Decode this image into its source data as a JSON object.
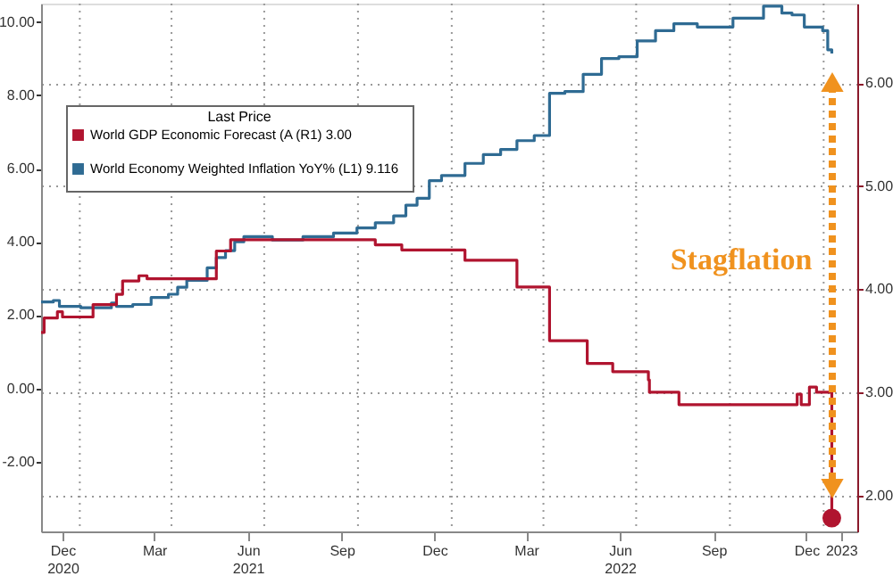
{
  "chart_data": {
    "type": "step",
    "legend_title": "Last Price",
    "legend": "top left",
    "grid": true,
    "marker": "none",
    "line_style": "solid",
    "annotations": [
      "Stagflation"
    ],
    "xlim": [
      "2020-11-24",
      "2023-02-03"
    ],
    "xticks": [
      {
        "value": "2020-12-15",
        "label": "Dec\n2020"
      },
      {
        "value": "2021-01-01",
        "label": null
      },
      {
        "value": "2021-03-15",
        "label": "Mar"
      },
      {
        "value": "2021-04-01",
        "label": null
      },
      {
        "value": "2021-06-15",
        "label": "Jun\n2021"
      },
      {
        "value": "2021-07-01",
        "label": null
      },
      {
        "value": "2021-09-15",
        "label": "Sep"
      },
      {
        "value": "2021-10-01",
        "label": null
      },
      {
        "value": "2021-12-15",
        "label": "Dec"
      },
      {
        "value": "2022-01-01",
        "label": null
      },
      {
        "value": "2022-03-15",
        "label": "Mar"
      },
      {
        "value": "2022-04-01",
        "label": null
      },
      {
        "value": "2022-06-15",
        "label": "Jun\n2022"
      },
      {
        "value": "2022-07-01",
        "label": null
      },
      {
        "value": "2022-09-15",
        "label": "Sep"
      },
      {
        "value": "2022-10-01",
        "label": null
      },
      {
        "value": "2022-12-15",
        "label": "Dec"
      },
      {
        "value": "2023-01-01",
        "label": null
      },
      {
        "value": "2023-01-18",
        "label": "2023"
      }
    ],
    "ylim": [
      -3.9,
      10.5
    ],
    "yticks": [
      {
        "value": -2,
        "label": "-2.00"
      },
      {
        "value": 0,
        "label": "0.00"
      },
      {
        "value": 2,
        "label": "2.00"
      },
      {
        "value": 4,
        "label": "4.00"
      },
      {
        "value": 6,
        "label": "6.00"
      },
      {
        "value": 8,
        "label": "8.00"
      },
      {
        "value": 10,
        "label": "10.00"
      }
    ],
    "y2lim": [
      1.65,
      6.77
    ],
    "y2ticks": [
      {
        "value": 2,
        "label": "2.00"
      },
      {
        "value": 3,
        "label": "3.00"
      },
      {
        "value": 4,
        "label": "4.00"
      },
      {
        "value": 5,
        "label": "5.00"
      },
      {
        "value": 6,
        "label": "6.00"
      }
    ],
    "series": [
      {
        "name": "World GDP Economic Forecast (A  (R1)  3.00",
        "color": "#b0142f",
        "axis": "y2",
        "x": [
          "2020-11-24",
          "2020-11-27",
          "2020-12-10",
          "2020-12-15",
          "2021-01-14",
          "2021-02-06",
          "2021-02-12",
          "2021-02-28",
          "2021-03-08",
          "2021-05-15",
          "2021-05-29",
          "2021-10-18",
          "2021-11-13",
          "2022-01-14",
          "2022-03-06",
          "2022-04-07",
          "2022-05-14",
          "2022-06-08",
          "2022-07-13",
          "2022-07-14",
          "2022-08-12",
          "2022-12-06",
          "2022-12-10",
          "2022-12-18",
          "2022-12-25",
          "2023-01-08",
          "2023-01-09"
        ],
        "values": [
          3.58,
          3.72,
          3.78,
          3.73,
          3.85,
          3.95,
          4.08,
          4.13,
          4.1,
          4.37,
          4.48,
          4.43,
          4.38,
          4.28,
          4.02,
          3.5,
          3.28,
          3.2,
          3.12,
          3.0,
          2.88,
          2.98,
          2.88,
          3.05,
          3.0,
          3.0,
          1.78
        ]
      },
      {
        "name": "World Economy Weighted Inflation YoY%  (L1)  9.116",
        "color": "#2f6b93",
        "axis": "y",
        "x": [
          "2020-11-24",
          "2020-12-06",
          "2020-12-12",
          "2021-01-02",
          "2021-01-20",
          "2021-02-01",
          "2021-02-06",
          "2021-02-22",
          "2021-03-12",
          "2021-03-29",
          "2021-04-07",
          "2021-04-16",
          "2021-05-06",
          "2021-05-15",
          "2021-05-24",
          "2021-06-02",
          "2021-06-11",
          "2021-07-09",
          "2021-08-08",
          "2021-08-26",
          "2021-09-07",
          "2021-09-30",
          "2021-10-18",
          "2021-11-05",
          "2021-11-17",
          "2021-11-28",
          "2021-12-10",
          "2021-12-22",
          "2022-01-14",
          "2022-02-01",
          "2022-02-18",
          "2022-03-06",
          "2022-03-23",
          "2022-04-07",
          "2022-04-22",
          "2022-05-10",
          "2022-05-28",
          "2022-06-14",
          "2022-07-02",
          "2022-07-20",
          "2022-08-07",
          "2022-08-30",
          "2022-09-29",
          "2022-10-04",
          "2022-11-03",
          "2022-11-12",
          "2022-11-21",
          "2022-12-01",
          "2022-12-13",
          "2022-12-31",
          "2023-01-05",
          "2023-01-09"
        ],
        "values": [
          2.36,
          2.4,
          2.24,
          2.2,
          2.2,
          2.33,
          2.24,
          2.29,
          2.48,
          2.57,
          2.76,
          2.95,
          3.29,
          3.57,
          3.76,
          4.0,
          4.14,
          4.05,
          4.14,
          4.14,
          4.24,
          4.38,
          4.52,
          4.71,
          5.0,
          5.19,
          5.67,
          5.81,
          6.14,
          6.38,
          6.52,
          6.76,
          6.9,
          8.05,
          8.1,
          8.57,
          9.0,
          9.05,
          9.48,
          9.76,
          9.95,
          9.86,
          9.86,
          10.1,
          10.43,
          10.43,
          10.24,
          10.19,
          9.86,
          9.76,
          9.24,
          9.14
        ]
      },
      {
        "type": "scatter",
        "marker": "circle",
        "color": "#b0142f",
        "axis": "y2",
        "x": [
          "2023-01-09"
        ],
        "values": [
          1.78
        ]
      }
    ]
  }
}
